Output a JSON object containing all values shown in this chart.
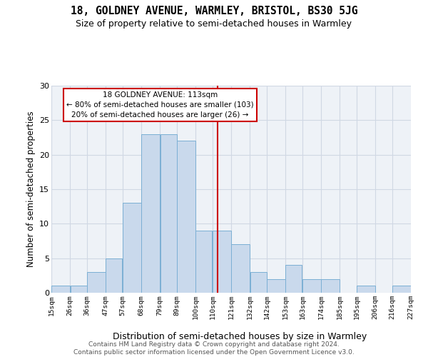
{
  "title": "18, GOLDNEY AVENUE, WARMLEY, BRISTOL, BS30 5JG",
  "subtitle": "Size of property relative to semi-detached houses in Warmley",
  "xlabel": "Distribution of semi-detached houses by size in Warmley",
  "ylabel": "Number of semi-detached properties",
  "bin_edges": [
    15,
    26,
    36,
    47,
    57,
    68,
    79,
    89,
    100,
    110,
    121,
    132,
    142,
    153,
    163,
    174,
    185,
    195,
    206,
    216,
    227
  ],
  "counts": [
    1,
    1,
    3,
    5,
    13,
    23,
    23,
    22,
    9,
    9,
    7,
    3,
    2,
    4,
    2,
    2,
    0,
    1,
    0,
    1
  ],
  "bar_facecolor": "#c9d9ec",
  "bar_edgecolor": "#7bafd4",
  "property_line_x": 113,
  "property_line_color": "#cc0000",
  "annotation_text": "18 GOLDNEY AVENUE: 113sqm\n← 80% of semi-detached houses are smaller (103)\n20% of semi-detached houses are larger (26) →",
  "annotation_box_color": "#cc0000",
  "ylim": [
    0,
    30
  ],
  "yticks": [
    0,
    5,
    10,
    15,
    20,
    25,
    30
  ],
  "grid_color": "#d0d8e4",
  "bg_color": "#eef2f7",
  "footer": "Contains HM Land Registry data © Crown copyright and database right 2024.\nContains public sector information licensed under the Open Government Licence v3.0.",
  "tick_labels": [
    "15sqm",
    "26sqm",
    "36sqm",
    "47sqm",
    "57sqm",
    "68sqm",
    "79sqm",
    "89sqm",
    "100sqm",
    "110sqm",
    "121sqm",
    "132sqm",
    "142sqm",
    "153sqm",
    "163sqm",
    "174sqm",
    "185sqm",
    "195sqm",
    "206sqm",
    "216sqm",
    "227sqm"
  ],
  "title_fontsize": 10.5,
  "subtitle_fontsize": 9,
  "footer_fontsize": 6.5
}
